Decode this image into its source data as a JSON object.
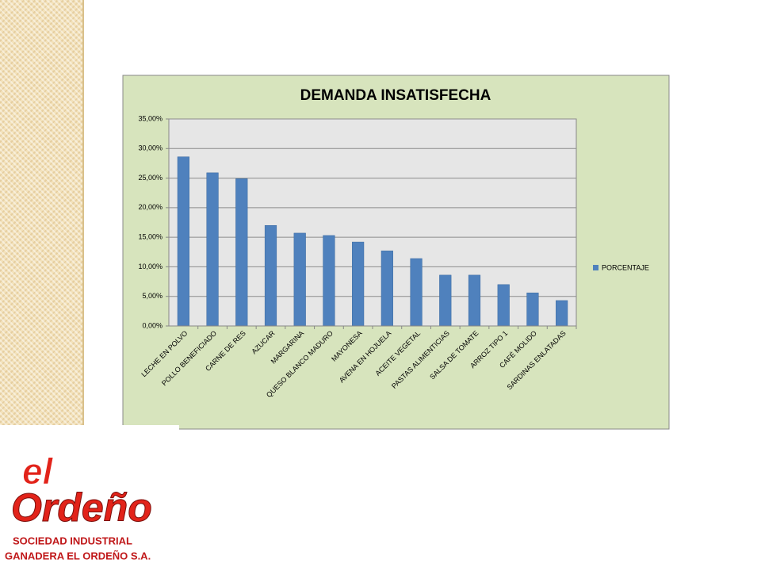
{
  "chart_data": {
    "type": "bar",
    "title": "DEMANDA INSATISFECHA",
    "categories": [
      "LECHE EN POLVO",
      "POLLO BENEFICIADO",
      "CARNE DE RES",
      "AZUCAR",
      "MARGARINA",
      "QUESO BLANCO MADURO",
      "MAYONESA",
      "AVENA EN HOJUELA",
      "ACEITE VEGETAL",
      "PASTAS ALIMENTICIAS",
      "SALSA DE TOMATE",
      "ARROZ TIPO 1",
      "CAFÉ MOLIDO",
      "SARDINAS ENLATADAS"
    ],
    "series": [
      {
        "name": "PORCENTAJE",
        "color": "#4f81bd",
        "values": [
          28.6,
          25.9,
          24.9,
          17.0,
          15.7,
          15.3,
          14.2,
          12.7,
          11.4,
          8.6,
          8.6,
          7.0,
          5.6,
          4.3
        ]
      }
    ],
    "ylim": [
      0,
      35
    ],
    "yticks": [
      {
        "value": 0,
        "label": "0,00%"
      },
      {
        "value": 5,
        "label": "5,00%"
      },
      {
        "value": 10,
        "label": "10,00%"
      },
      {
        "value": 15,
        "label": "15,00%"
      },
      {
        "value": 20,
        "label": "20,00%"
      },
      {
        "value": 25,
        "label": "25,00%"
      },
      {
        "value": 30,
        "label": "30,00%"
      },
      {
        "value": 35,
        "label": "35,00%"
      }
    ],
    "grid": true,
    "legend": "right"
  },
  "logo": {
    "brand_small": "el",
    "brand_large": "Ordeño",
    "line1": "SOCIEDAD INDUSTRIAL",
    "line2": "GANADERA EL ORDEÑO S.A."
  }
}
